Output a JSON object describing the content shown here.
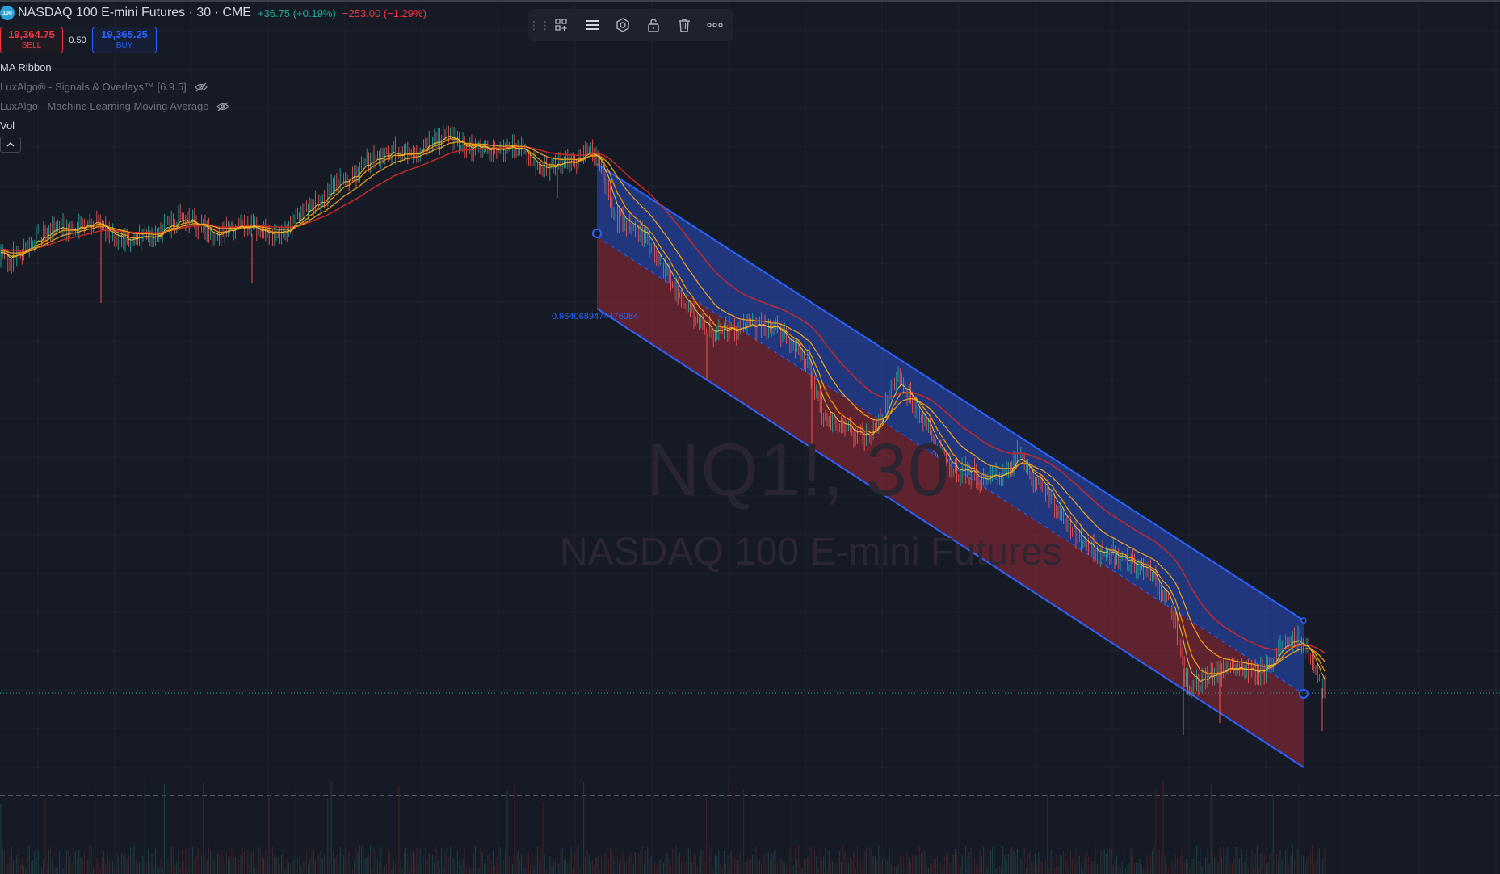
{
  "symbol": {
    "logo_text": "100",
    "title": "NASDAQ 100 E-mini Futures · 30 · CME",
    "change_up": "+36.75 (+0.19%)",
    "change_down": "−253.00 (−1.29%)"
  },
  "trade": {
    "sell_price": "19,364.75",
    "sell_label": "SELL",
    "spread": "0.50",
    "buy_price": "19,365.25",
    "buy_label": "BUY"
  },
  "indicators": [
    {
      "name": "MA Ribbon"
    },
    {
      "name": "LuxAlgo® - Signals & Overlays™ [6.9.5]"
    },
    {
      "name": "LuxAlgo - Machine Learning Moving Average"
    },
    {
      "name": "Vol"
    }
  ],
  "toolbar": {
    "icons": [
      "drag-grip-icon",
      "add-template-icon",
      "line-style-icon",
      "settings-icon",
      "lock-icon",
      "trash-icon",
      "more-icon"
    ]
  },
  "watermark": {
    "line1": "NQ1!, 30",
    "line2": "NASDAQ 100 E-mini Futures"
  },
  "drawing": {
    "fib_label": "0.9640689474476084"
  },
  "colors": {
    "background": "#161a25",
    "grid": "#1f2330",
    "channel_upper_fill": "#1f3a8f",
    "channel_lower_fill": "#6b2333",
    "channel_line": "#2962ff",
    "ma_red": "#c62828",
    "ma_orange": "#f7a21b",
    "ma_yellow": "#e0c341",
    "candle_up": "#26a69a",
    "candle_down": "#ef5350"
  }
}
